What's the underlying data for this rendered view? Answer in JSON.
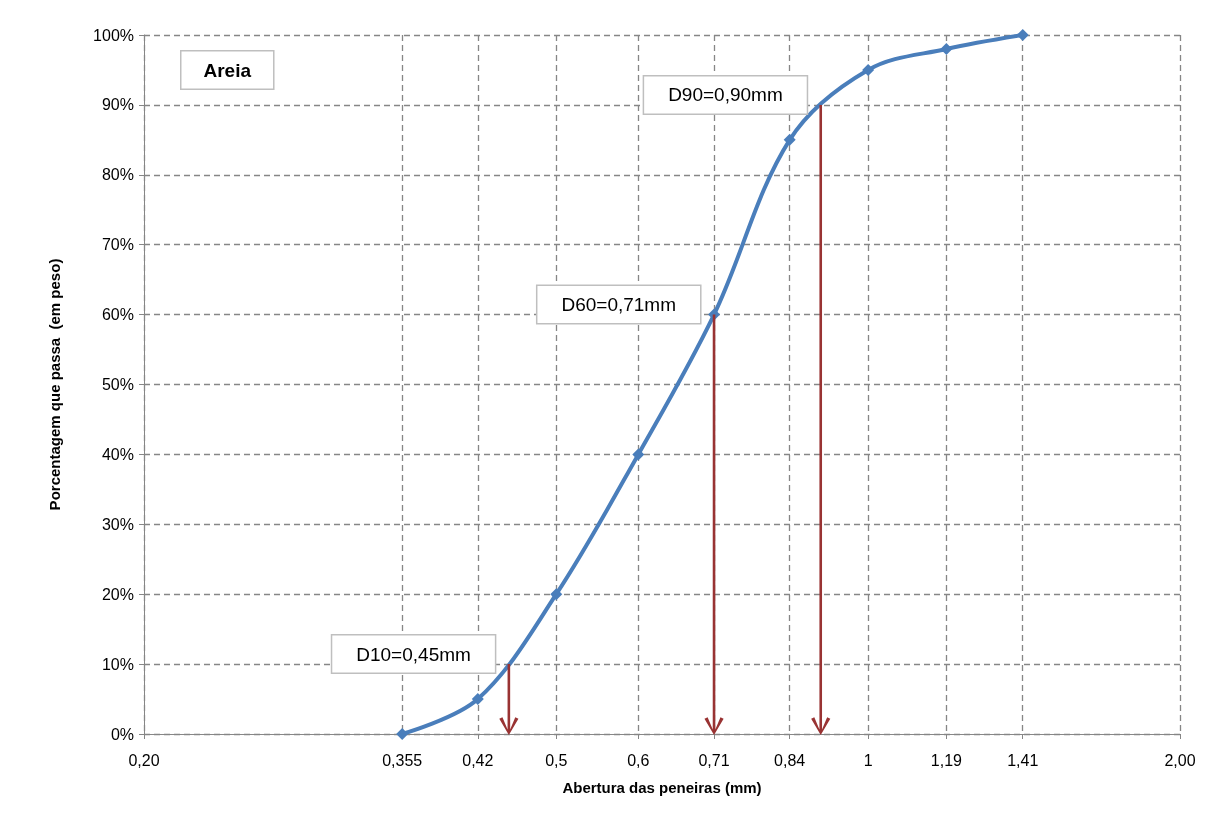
{
  "chart_data": {
    "type": "line",
    "title": "Areia",
    "xlabel": "Abertura das peneiras (mm)",
    "ylabel": "Porcentagem que passa  (em peso)",
    "x": [
      0.355,
      0.42,
      0.5,
      0.6,
      0.71,
      0.84,
      1,
      1.19,
      1.41
    ],
    "series": [
      {
        "color": "#4a7ebb",
        "values": [
          0,
          5,
          20,
          40,
          60,
          85,
          95,
          98,
          100
        ]
      }
    ],
    "log": "x",
    "marker": "diamond",
    "line_style": "solid",
    "grid": true,
    "xlim": [
      0.2,
      2.0
    ],
    "xticks": [
      {
        "value": 0.2,
        "label": "0,20"
      },
      {
        "value": 0.355,
        "label": "0,355"
      },
      {
        "value": 0.42,
        "label": "0,42"
      },
      {
        "value": 0.5,
        "label": "0,5"
      },
      {
        "value": 0.6,
        "label": "0,6"
      },
      {
        "value": 0.71,
        "label": "0,71"
      },
      {
        "value": 0.84,
        "label": "0,84"
      },
      1,
      {
        "value": 1.19,
        "label": "1,19"
      },
      {
        "value": 1.41,
        "label": "1,41"
      },
      {
        "value": 2.0,
        "label": "2,00"
      }
    ],
    "ylim": [
      0,
      100
    ],
    "yticks": [
      {
        "value": 0,
        "label": "0%"
      },
      {
        "value": 10,
        "label": "10%"
      },
      {
        "value": 20,
        "label": "20%"
      },
      {
        "value": 30,
        "label": "30%"
      },
      {
        "value": 40,
        "label": "40%"
      },
      {
        "value": 50,
        "label": "50%"
      },
      {
        "value": 60,
        "label": "60%"
      },
      {
        "value": 70,
        "label": "70%"
      },
      {
        "value": 80,
        "label": "80%"
      },
      {
        "value": 90,
        "label": "90%"
      },
      {
        "value": 100,
        "label": "100%"
      }
    ],
    "annotations": [
      {
        "text": "D10=0,45mm",
        "x": 0.45,
        "y": 10
      },
      {
        "text": "D60=0,71mm",
        "x": 0.71,
        "y": 60
      },
      {
        "text": "D90=0,90mm",
        "x": 0.9,
        "y": 90
      }
    ]
  }
}
